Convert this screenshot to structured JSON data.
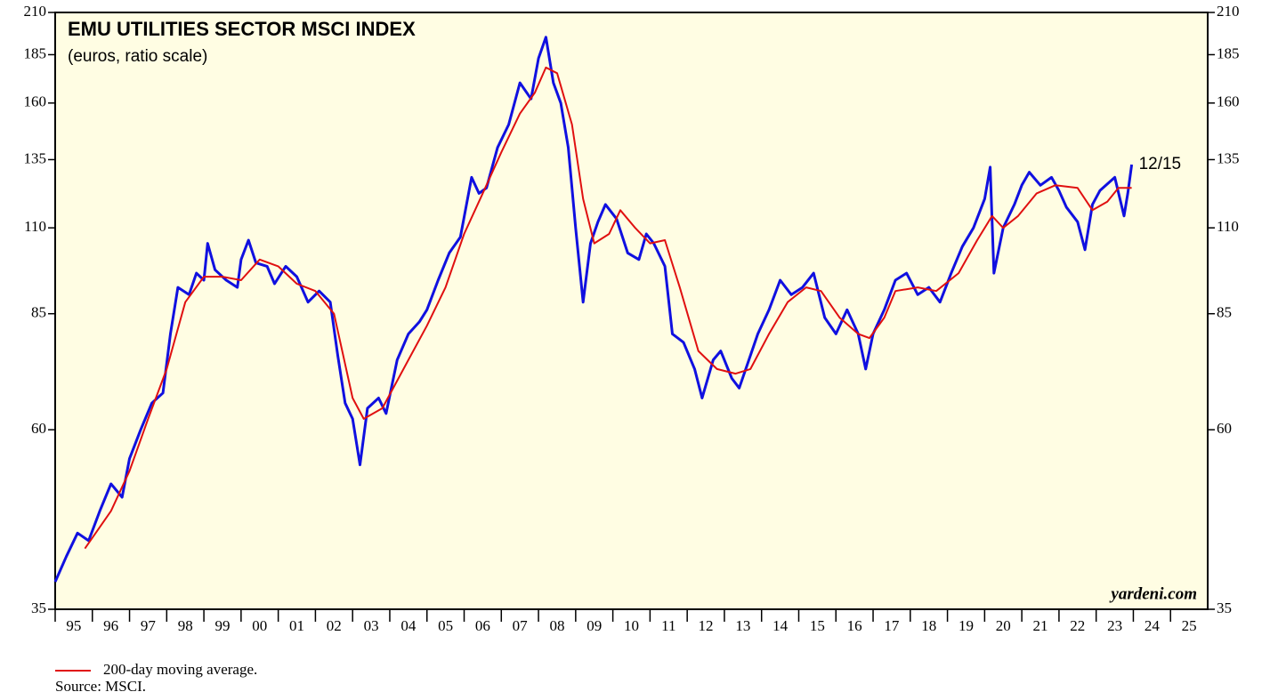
{
  "chart_data": {
    "type": "line",
    "title": "EMU UTILITIES SECTOR MSCI INDEX",
    "subtitle": "(euros, ratio scale)",
    "annotation": "12/15",
    "watermark": "yardeni.com",
    "source": "Source: MSCI.",
    "log_scale": true,
    "background": "#fffde3",
    "xlim": [
      1995,
      2026
    ],
    "xticks": [
      {
        "value": 1995,
        "label": "95"
      },
      {
        "value": 1996,
        "label": "96"
      },
      {
        "value": 1997,
        "label": "97"
      },
      {
        "value": 1998,
        "label": "98"
      },
      {
        "value": 1999,
        "label": "99"
      },
      {
        "value": 2000,
        "label": "00"
      },
      {
        "value": 2001,
        "label": "01"
      },
      {
        "value": 2002,
        "label": "02"
      },
      {
        "value": 2003,
        "label": "03"
      },
      {
        "value": 2004,
        "label": "04"
      },
      {
        "value": 2005,
        "label": "05"
      },
      {
        "value": 2006,
        "label": "06"
      },
      {
        "value": 2007,
        "label": "07"
      },
      {
        "value": 2008,
        "label": "08"
      },
      {
        "value": 2009,
        "label": "09"
      },
      {
        "value": 2010,
        "label": "10"
      },
      {
        "value": 2011,
        "label": "11"
      },
      {
        "value": 2012,
        "label": "12"
      },
      {
        "value": 2013,
        "label": "13"
      },
      {
        "value": 2014,
        "label": "14"
      },
      {
        "value": 2015,
        "label": "15"
      },
      {
        "value": 2016,
        "label": "16"
      },
      {
        "value": 2017,
        "label": "17"
      },
      {
        "value": 2018,
        "label": "18"
      },
      {
        "value": 2019,
        "label": "19"
      },
      {
        "value": 2020,
        "label": "20"
      },
      {
        "value": 2021,
        "label": "21"
      },
      {
        "value": 2022,
        "label": "22"
      },
      {
        "value": 2023,
        "label": "23"
      },
      {
        "value": 2024,
        "label": "24"
      },
      {
        "value": 2025,
        "label": "25"
      }
    ],
    "ylim": [
      35,
      210
    ],
    "yticks": [
      35,
      60,
      85,
      110,
      135,
      160,
      185,
      210
    ],
    "series": [
      {
        "color": "#1010e0",
        "width": 3,
        "x": [
          1995.0,
          1995.3,
          1995.6,
          1995.9,
          1996.2,
          1996.5,
          1996.8,
          1997.0,
          1997.3,
          1997.6,
          1997.9,
          1998.1,
          1998.3,
          1998.6,
          1998.8,
          1999.0,
          1999.1,
          1999.3,
          1999.6,
          1999.9,
          2000.0,
          2000.2,
          2000.4,
          2000.7,
          2000.9,
          2001.2,
          2001.5,
          2001.8,
          2002.1,
          2002.4,
          2002.6,
          2002.8,
          2003.0,
          2003.2,
          2003.4,
          2003.7,
          2003.9,
          2004.2,
          2004.5,
          2004.8,
          2005.0,
          2005.3,
          2005.6,
          2005.9,
          2006.2,
          2006.4,
          2006.6,
          2006.9,
          2007.2,
          2007.5,
          2007.8,
          2008.0,
          2008.2,
          2008.4,
          2008.6,
          2008.8,
          2009.0,
          2009.2,
          2009.4,
          2009.6,
          2009.8,
          2010.1,
          2010.4,
          2010.7,
          2010.9,
          2011.1,
          2011.4,
          2011.6,
          2011.9,
          2012.2,
          2012.4,
          2012.7,
          2012.9,
          2013.2,
          2013.4,
          2013.7,
          2013.9,
          2014.2,
          2014.5,
          2014.8,
          2015.1,
          2015.4,
          2015.7,
          2016.0,
          2016.3,
          2016.6,
          2016.8,
          2017.0,
          2017.3,
          2017.6,
          2017.9,
          2018.2,
          2018.5,
          2018.8,
          2019.1,
          2019.4,
          2019.7,
          2020.0,
          2020.15,
          2020.25,
          2020.5,
          2020.8,
          2021.0,
          2021.2,
          2021.5,
          2021.8,
          2022.0,
          2022.2,
          2022.5,
          2022.7,
          2022.9,
          2023.1,
          2023.5,
          2023.75,
          2023.85,
          2023.955
        ],
        "values": [
          38,
          41,
          44,
          43,
          47,
          51,
          49,
          55,
          60,
          65,
          67,
          80,
          92,
          90,
          96,
          94,
          105,
          97,
          94,
          92,
          100,
          106,
          99,
          98,
          93,
          98,
          95,
          88,
          91,
          88,
          75,
          65,
          62,
          54,
          64,
          66,
          63,
          74,
          80,
          83,
          86,
          94,
          102,
          107,
          128,
          122,
          124,
          140,
          150,
          170,
          162,
          183,
          195,
          170,
          160,
          140,
          110,
          88,
          105,
          112,
          118,
          113,
          102,
          100,
          108,
          105,
          98,
          80,
          78,
          72,
          66,
          74,
          76,
          70,
          68,
          75,
          80,
          86,
          94,
          90,
          92,
          96,
          84,
          80,
          86,
          80,
          72,
          80,
          86,
          94,
          96,
          90,
          92,
          88,
          96,
          104,
          110,
          120,
          132,
          96,
          110,
          118,
          125,
          130,
          125,
          128,
          123,
          117,
          112,
          103,
          118,
          123,
          128,
          114,
          122,
          133
        ]
      },
      {
        "name": "200-day moving average.",
        "color": "#e01010",
        "width": 2,
        "x": [
          1995.8,
          1996.5,
          1997.0,
          1997.5,
          1998.0,
          1998.5,
          1999.0,
          1999.5,
          2000.0,
          2000.5,
          2001.0,
          2001.5,
          2002.0,
          2002.5,
          2003.0,
          2003.3,
          2003.8,
          2004.5,
          2005.0,
          2005.5,
          2006.0,
          2006.5,
          2007.0,
          2007.5,
          2007.9,
          2008.2,
          2008.5,
          2008.9,
          2009.2,
          2009.5,
          2009.9,
          2010.2,
          2010.6,
          2011.0,
          2011.4,
          2011.8,
          2012.3,
          2012.8,
          2013.3,
          2013.7,
          2014.2,
          2014.7,
          2015.2,
          2015.6,
          2016.1,
          2016.6,
          2016.9,
          2017.3,
          2017.6,
          2018.2,
          2018.7,
          2019.3,
          2019.8,
          2020.2,
          2020.5,
          2020.9,
          2021.4,
          2021.9,
          2022.5,
          2022.9,
          2023.3,
          2023.6,
          2023.955
        ],
        "values": [
          42,
          47,
          53,
          62,
          72,
          88,
          95,
          95,
          94,
          100,
          98,
          93,
          91,
          85,
          66,
          62,
          64,
          74,
          82,
          92,
          108,
          122,
          138,
          155,
          165,
          178,
          175,
          150,
          120,
          105,
          108,
          116,
          110,
          105,
          106,
          92,
          76,
          72,
          71,
          72,
          80,
          88,
          92,
          91,
          84,
          80,
          79,
          84,
          91,
          92,
          91,
          96,
          106,
          114,
          110,
          114,
          122,
          125,
          124,
          116,
          119,
          124,
          124
        ]
      }
    ]
  }
}
